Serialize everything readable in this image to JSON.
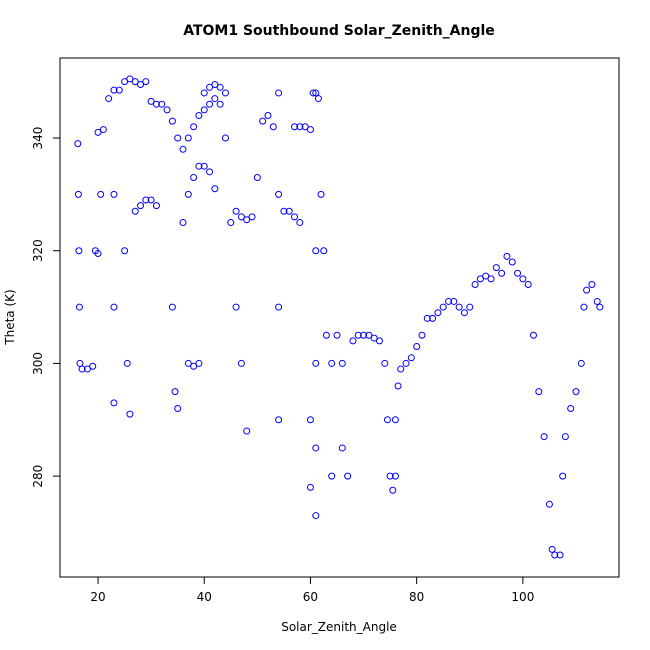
{
  "chart_data": {
    "type": "scatter",
    "title": "ATOM1 Southbound Solar_Zenith_Angle",
    "x_label": "Solar_Zenith_Angle",
    "y_label": "Theta (K)",
    "xlim": [
      12.84,
      118.1
    ],
    "ylim": [
      262.1,
      354.2
    ],
    "xticks": [
      20,
      40,
      60,
      80,
      100
    ],
    "yticks": [
      280,
      300,
      320,
      340
    ],
    "color": "#0000ff",
    "series": [
      {
        "x": [
          16.2,
          16.3,
          16.4,
          16.5,
          16.6,
          17,
          18,
          19,
          19.5,
          20,
          20.5,
          20,
          21,
          22,
          23,
          24,
          23,
          23,
          23,
          25,
          26,
          27,
          28,
          29,
          25,
          25.5,
          26,
          27,
          28,
          29,
          30,
          31,
          30,
          31,
          32,
          33,
          34,
          35,
          36,
          34,
          34.5,
          35,
          36,
          37,
          38,
          39,
          40,
          41,
          42,
          37,
          38,
          39,
          40,
          41,
          42,
          43,
          40,
          41,
          42,
          43,
          44,
          37,
          38,
          39,
          44,
          45,
          46,
          47,
          48,
          46,
          47,
          48,
          49,
          50,
          51,
          52,
          53,
          54,
          54,
          54,
          54,
          55,
          56,
          57,
          58,
          57,
          58,
          59,
          60,
          60.5,
          61,
          61.5,
          61,
          61,
          61,
          61,
          60,
          60,
          62,
          62.5,
          63,
          64,
          64,
          65,
          66,
          66,
          67,
          68,
          69,
          70,
          71,
          72,
          73,
          74,
          74.5,
          75,
          75.5,
          76,
          76,
          76.5,
          77,
          78,
          79,
          80,
          81,
          82,
          83,
          84,
          85,
          86,
          87,
          88,
          89,
          90,
          91,
          92,
          93,
          94,
          95,
          96,
          97,
          98,
          99,
          100,
          101,
          102,
          103,
          104,
          105,
          105.5,
          106,
          107,
          107.5,
          108,
          109,
          110,
          111,
          111.5,
          112,
          113,
          114,
          114.5
        ],
        "values": [
          339,
          330,
          320,
          310,
          300,
          299,
          299,
          299.5,
          320,
          319.5,
          330,
          341,
          341.5,
          347,
          348.5,
          348.5,
          330,
          310,
          293,
          350,
          350.5,
          350,
          349.5,
          350,
          320,
          300,
          291,
          327,
          328,
          329,
          329,
          328,
          346.5,
          346,
          346,
          345,
          343,
          340,
          338,
          310,
          295,
          292,
          325,
          330,
          333,
          335,
          335,
          334,
          331,
          340,
          342,
          344,
          345,
          346,
          347,
          346,
          348,
          349,
          349.5,
          349,
          348,
          300,
          299.5,
          300,
          340,
          325,
          310,
          300,
          288,
          327,
          326,
          325.5,
          326,
          333,
          343,
          344,
          342,
          348,
          330,
          310,
          290,
          327,
          327,
          326,
          325,
          342,
          342,
          342,
          341.5,
          348,
          348,
          347,
          320,
          300,
          285,
          273,
          278,
          290,
          330,
          320,
          305,
          300,
          280,
          305,
          300,
          285,
          280,
          304,
          305,
          305,
          305,
          304.5,
          304,
          300,
          290,
          280,
          277.5,
          280,
          290,
          296,
          299,
          300,
          301,
          303,
          305,
          308,
          308,
          309,
          310,
          311,
          311,
          310,
          309,
          310,
          314,
          315,
          315.5,
          315,
          317,
          316,
          319,
          318,
          316,
          315,
          314,
          305,
          295,
          287,
          275,
          267,
          266,
          266,
          280,
          287,
          292,
          295,
          300,
          310,
          313,
          314,
          311,
          310
        ]
      }
    ]
  }
}
